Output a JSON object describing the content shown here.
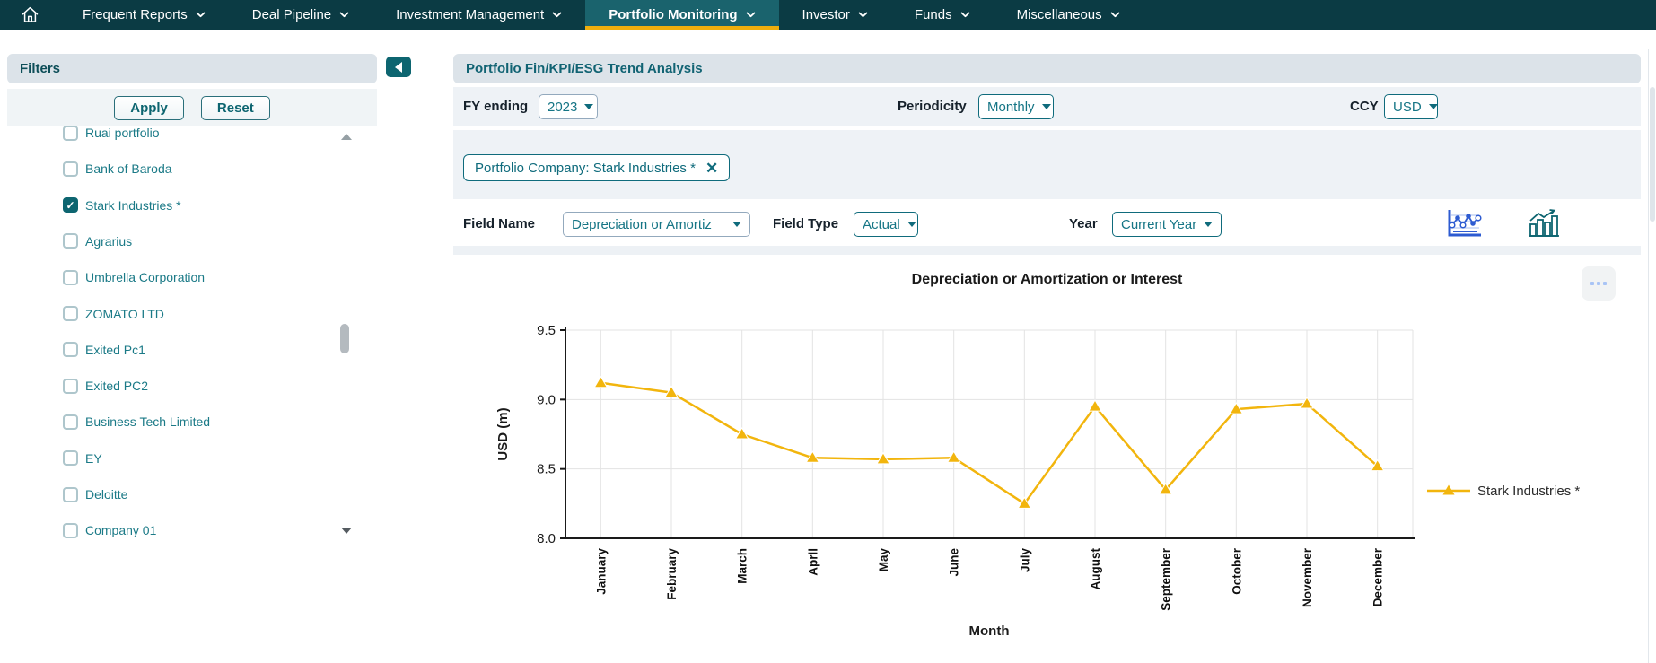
{
  "nav": {
    "items": [
      {
        "label": "Frequent Reports",
        "active": false
      },
      {
        "label": "Deal Pipeline",
        "active": false
      },
      {
        "label": "Investment Management",
        "active": false
      },
      {
        "label": "Portfolio Monitoring",
        "active": true
      },
      {
        "label": "Investor",
        "active": false
      },
      {
        "label": "Funds",
        "active": false
      },
      {
        "label": "Miscellaneous",
        "active": false
      }
    ]
  },
  "sidebar": {
    "title": "Filters",
    "apply_label": "Apply",
    "reset_label": "Reset",
    "companies": [
      {
        "label": "Ruai portfolio",
        "checked": false
      },
      {
        "label": "Bank of Baroda",
        "checked": false
      },
      {
        "label": "Stark Industries *",
        "checked": true
      },
      {
        "label": "Agrarius",
        "checked": false
      },
      {
        "label": "Umbrella Corporation",
        "checked": false
      },
      {
        "label": "ZOMATO LTD",
        "checked": false
      },
      {
        "label": "Exited Pc1",
        "checked": false
      },
      {
        "label": "Exited PC2",
        "checked": false
      },
      {
        "label": "Business Tech Limited",
        "checked": false
      },
      {
        "label": "EY",
        "checked": false
      },
      {
        "label": "Deloitte",
        "checked": false
      },
      {
        "label": "Company 01",
        "checked": false
      }
    ]
  },
  "main": {
    "title": "Portfolio Fin/KPI/ESG Trend Analysis",
    "filters": {
      "fy_label": "FY ending",
      "fy_value": "2023",
      "periodicity_label": "Periodicity",
      "periodicity_value": "Monthly",
      "ccy_label": "CCY",
      "ccy_value": "USD",
      "tag": "Portfolio Company: Stark Industries *",
      "field_name_label": "Field Name",
      "field_name_value": "Depreciation or Amortiz",
      "field_type_label": "Field Type",
      "field_type_value": "Actual",
      "year_label": "Year",
      "year_value": "Current Year"
    }
  },
  "chart_data": {
    "type": "line",
    "title": "Depreciation or Amortization or Interest",
    "xlabel": "Month",
    "ylabel": "USD (m)",
    "ylim": [
      8.0,
      9.5
    ],
    "yticks": [
      8.0,
      8.5,
      9.0,
      9.5
    ],
    "grid": true,
    "legend_position": "right",
    "categories": [
      "January",
      "February",
      "March",
      "April",
      "May",
      "June",
      "July",
      "August",
      "September",
      "October",
      "November",
      "December"
    ],
    "series": [
      {
        "name": "Stark Industries *",
        "color": "#F2B50D",
        "marker": "triangle",
        "values": [
          9.12,
          9.05,
          8.75,
          8.58,
          8.57,
          8.58,
          8.25,
          8.95,
          8.35,
          8.93,
          8.97,
          8.52
        ]
      }
    ]
  },
  "icons": {
    "home": "house outline",
    "chevron_down": "⌄",
    "collapse_panel": "◀",
    "check": "✓",
    "close": "✕",
    "caret_down": "▾",
    "line_chart_toggle": "line chart glyph (active, blue)",
    "bar_chart_toggle": "bar chart glyph (teal)",
    "more_options": "⋯",
    "scroll_up": "▲",
    "scroll_down": "▼"
  },
  "colors": {
    "nav_bg": "#0B3B44",
    "nav_active_bg": "#1A636D",
    "nav_active_underline": "#EFAE0D",
    "teal_accent": "#0F6B7C",
    "header_bar_bg": "#DCE3E9",
    "row_bg": "#EEF2F6",
    "series_line": "#F2B50D",
    "toggle_active_blue": "#2D5BD1"
  }
}
